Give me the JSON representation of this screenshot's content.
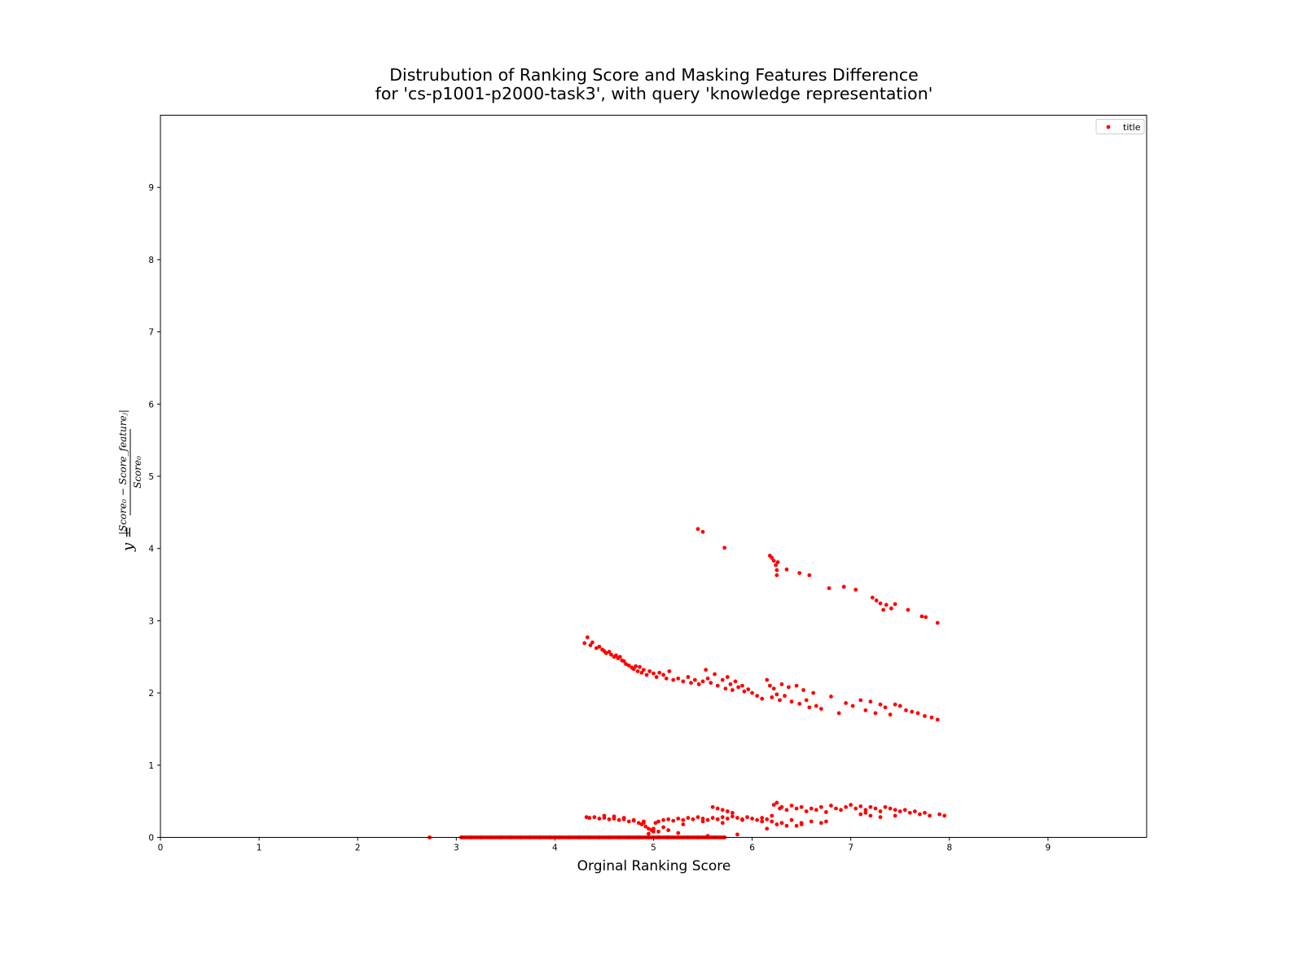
{
  "chart_data": {
    "type": "scatter",
    "title_lines": [
      "Distrubution of Ranking Score and Masking Features Difference",
      "for 'cs-p1001-p2000-task3', with query 'knowledge representation'"
    ],
    "xlabel": "Orginal Ranking Score",
    "ylabel": {
      "prefix": "y =",
      "numerator": "|Score₀ − Score_featureⱼ|",
      "denominator": "Score₀"
    },
    "xlim": [
      0,
      10
    ],
    "ylim": [
      0,
      10
    ],
    "xticks": [
      "0",
      "1",
      "2",
      "3",
      "4",
      "5",
      "6",
      "7",
      "8",
      "9"
    ],
    "yticks": [
      "0",
      "1",
      "2",
      "3",
      "4",
      "5",
      "6",
      "7",
      "8",
      "9"
    ],
    "grid": false,
    "legend": {
      "position": "top-right",
      "entries": [
        "title"
      ]
    },
    "series": [
      {
        "name": "title",
        "color": "#ff0000",
        "description": "upper band",
        "x": [
          5.45,
          5.5,
          5.72,
          6.18,
          6.2,
          6.22,
          6.24,
          6.25,
          6.25,
          6.26,
          6.35,
          6.48,
          6.58,
          6.78,
          6.93,
          7.05,
          7.22,
          7.26,
          7.3,
          7.33,
          7.36,
          7.41,
          7.45,
          7.58,
          7.72,
          7.76,
          7.88
        ],
        "y": [
          4.27,
          4.23,
          4.01,
          3.9,
          3.87,
          3.83,
          3.77,
          3.7,
          3.63,
          3.81,
          3.71,
          3.66,
          3.63,
          3.45,
          3.47,
          3.43,
          3.32,
          3.28,
          3.24,
          3.15,
          3.22,
          3.17,
          3.23,
          3.15,
          3.06,
          3.05,
          2.97
        ]
      },
      {
        "name": "title",
        "color": "#ff0000",
        "description": "middle band",
        "x": [
          4.3,
          4.33,
          4.36,
          4.38,
          4.42,
          4.45,
          4.48,
          4.5,
          4.52,
          4.55,
          4.57,
          4.6,
          4.62,
          4.64,
          4.66,
          4.68,
          4.7,
          4.72,
          4.75,
          4.78,
          4.8,
          4.82,
          4.84,
          4.86,
          4.88,
          4.9,
          4.93,
          4.96,
          5.0,
          5.03,
          5.06,
          5.1,
          5.13,
          5.16,
          5.2,
          5.25,
          5.3,
          5.35,
          5.38,
          5.42,
          5.46,
          5.5,
          5.53,
          5.55,
          5.58,
          5.62,
          5.65,
          5.7,
          5.73,
          5.75,
          5.78,
          5.8,
          5.83,
          5.86,
          5.9,
          5.92,
          5.96,
          6.0,
          6.05,
          6.1,
          6.15,
          6.18,
          6.2,
          6.22,
          6.25,
          6.28,
          6.3,
          6.33,
          6.37,
          6.4,
          6.45,
          6.48,
          6.52,
          6.55,
          6.58,
          6.62,
          6.65,
          6.7,
          6.8,
          6.88,
          6.95,
          7.02,
          7.1,
          7.15,
          7.2,
          7.25,
          7.3,
          7.35,
          7.4,
          7.45,
          7.5,
          7.56,
          7.62,
          7.68,
          7.75,
          7.82,
          7.88
        ],
        "y": [
          2.69,
          2.77,
          2.66,
          2.7,
          2.62,
          2.64,
          2.6,
          2.58,
          2.55,
          2.57,
          2.53,
          2.5,
          2.52,
          2.48,
          2.5,
          2.45,
          2.44,
          2.4,
          2.38,
          2.35,
          2.33,
          2.37,
          2.3,
          2.36,
          2.28,
          2.32,
          2.25,
          2.3,
          2.27,
          2.22,
          2.28,
          2.25,
          2.2,
          2.3,
          2.18,
          2.2,
          2.16,
          2.22,
          2.14,
          2.18,
          2.12,
          2.16,
          2.32,
          2.2,
          2.14,
          2.26,
          2.1,
          2.18,
          2.06,
          2.22,
          2.12,
          2.04,
          2.16,
          2.08,
          2.1,
          2.02,
          2.05,
          2.0,
          1.96,
          1.92,
          2.18,
          2.1,
          1.94,
          2.06,
          1.98,
          1.9,
          2.12,
          1.96,
          2.08,
          1.88,
          2.1,
          1.85,
          2.04,
          1.9,
          1.8,
          2.0,
          1.82,
          1.78,
          1.95,
          1.72,
          1.86,
          1.82,
          1.9,
          1.76,
          1.88,
          1.72,
          1.84,
          1.8,
          1.7,
          1.84,
          1.82,
          1.76,
          1.74,
          1.72,
          1.68,
          1.66,
          1.63
        ]
      },
      {
        "name": "title",
        "color": "#ff0000",
        "description": "lower band",
        "x": [
          4.32,
          4.35,
          4.4,
          4.45,
          4.5,
          4.55,
          4.6,
          4.65,
          4.7,
          4.75,
          4.8,
          4.85,
          4.88,
          4.9,
          4.92,
          4.95,
          4.98,
          5.0,
          5.02,
          5.05,
          5.1,
          5.15,
          5.2,
          5.25,
          5.3,
          5.35,
          5.4,
          5.45,
          5.5,
          5.55,
          5.6,
          5.65,
          5.7,
          5.75,
          5.8,
          5.85,
          5.9,
          5.95,
          6.0,
          6.05,
          6.1,
          6.15,
          6.2,
          6.22,
          6.25,
          6.28,
          6.3,
          6.35,
          6.4,
          6.45,
          6.5,
          6.55,
          6.6,
          6.65,
          6.7,
          6.75,
          6.8,
          6.85,
          6.9,
          6.95,
          7.0,
          7.05,
          7.1,
          7.15,
          7.2,
          7.25,
          7.3,
          7.35,
          7.4,
          7.45,
          7.5,
          7.55,
          7.6,
          7.65,
          7.7,
          7.75,
          7.8,
          7.9,
          7.95,
          4.5,
          4.6,
          4.7,
          4.8,
          4.9,
          5.0,
          5.1,
          5.3,
          5.5,
          5.7,
          5.9,
          6.1,
          6.3,
          6.5,
          6.7,
          5.6,
          5.65,
          5.7,
          5.75,
          5.8,
          6.2,
          6.25,
          6.3,
          6.35,
          6.4,
          6.5,
          6.6,
          7.1,
          7.2,
          7.3,
          4.95,
          5.05,
          5.15,
          5.25,
          5.55,
          5.85,
          6.15,
          6.45,
          6.75,
          7.15,
          7.45
        ],
        "y": [
          0.28,
          0.27,
          0.28,
          0.26,
          0.27,
          0.25,
          0.26,
          0.24,
          0.25,
          0.22,
          0.23,
          0.2,
          0.18,
          0.22,
          0.15,
          0.12,
          0.1,
          0.08,
          0.2,
          0.22,
          0.24,
          0.25,
          0.23,
          0.26,
          0.24,
          0.27,
          0.25,
          0.28,
          0.26,
          0.24,
          0.27,
          0.25,
          0.28,
          0.26,
          0.29,
          0.27,
          0.25,
          0.28,
          0.26,
          0.24,
          0.27,
          0.25,
          0.3,
          0.45,
          0.48,
          0.4,
          0.42,
          0.38,
          0.44,
          0.4,
          0.42,
          0.36,
          0.4,
          0.38,
          0.42,
          0.35,
          0.44,
          0.4,
          0.38,
          0.42,
          0.45,
          0.4,
          0.43,
          0.38,
          0.42,
          0.4,
          0.36,
          0.42,
          0.4,
          0.38,
          0.36,
          0.38,
          0.34,
          0.36,
          0.32,
          0.34,
          0.3,
          0.32,
          0.3,
          0.3,
          0.29,
          0.27,
          0.24,
          0.2,
          0.12,
          0.14,
          0.18,
          0.22,
          0.2,
          0.24,
          0.22,
          0.2,
          0.18,
          0.2,
          0.42,
          0.4,
          0.38,
          0.36,
          0.34,
          0.22,
          0.18,
          0.2,
          0.16,
          0.24,
          0.2,
          0.22,
          0.32,
          0.3,
          0.28,
          0.05,
          0.08,
          0.1,
          0.06,
          0.02,
          0.04,
          0.12,
          0.16,
          0.22,
          0.34,
          0.3
        ]
      },
      {
        "name": "title",
        "color": "#ff0000",
        "description": "baseline points at y = 0",
        "x": [
          2.73,
          3.05,
          3.15,
          3.25,
          3.35,
          3.45,
          3.55,
          3.65,
          3.75,
          3.85,
          3.95,
          4.05,
          4.15,
          4.25,
          4.35,
          4.45,
          4.55,
          4.65,
          4.75,
          4.85,
          4.95,
          5.05,
          5.15,
          5.25,
          5.35,
          5.45,
          5.55,
          5.62,
          5.72
        ],
        "y": [
          0,
          0,
          0,
          0,
          0,
          0,
          0,
          0,
          0,
          0,
          0,
          0,
          0,
          0,
          0,
          0,
          0,
          0,
          0,
          0,
          0,
          0,
          0,
          0,
          0,
          0,
          0,
          0,
          0
        ]
      }
    ]
  }
}
